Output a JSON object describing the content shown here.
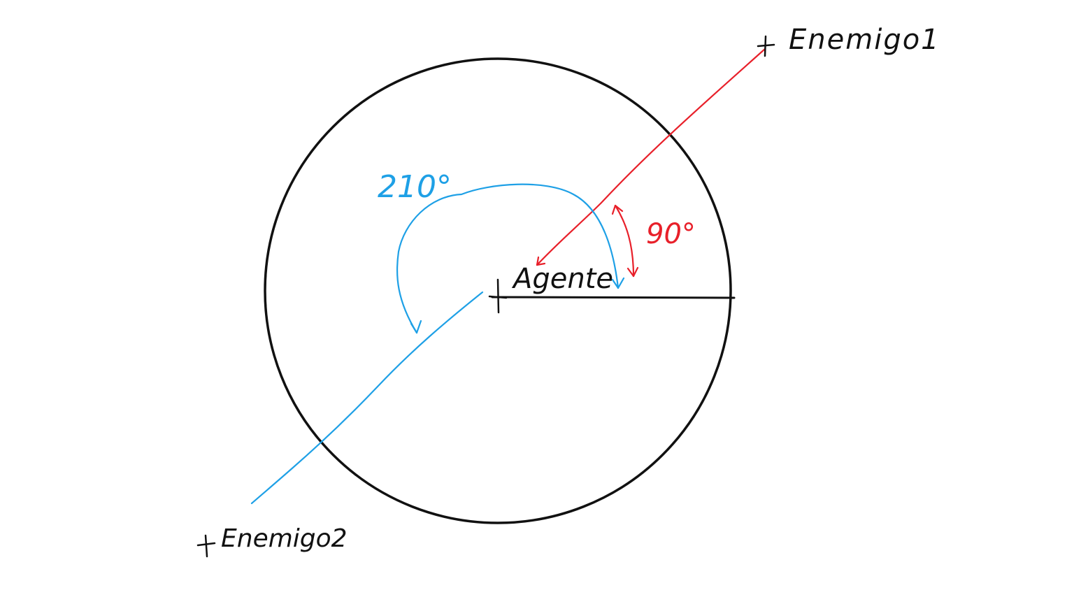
{
  "labels": {
    "enemy1": "Enemigo1",
    "enemy2": "Enemigo2",
    "agent": "Agente",
    "angle_red": "90°",
    "angle_blue": "210°"
  },
  "colors": {
    "background": "#ffffff",
    "stroke_black": "#111111",
    "accent_red": "#e8202a",
    "accent_blue": "#1ea0e6"
  },
  "icons": {
    "marker": "cross-marker-icon",
    "arrowhead": "arrowhead-icon"
  }
}
